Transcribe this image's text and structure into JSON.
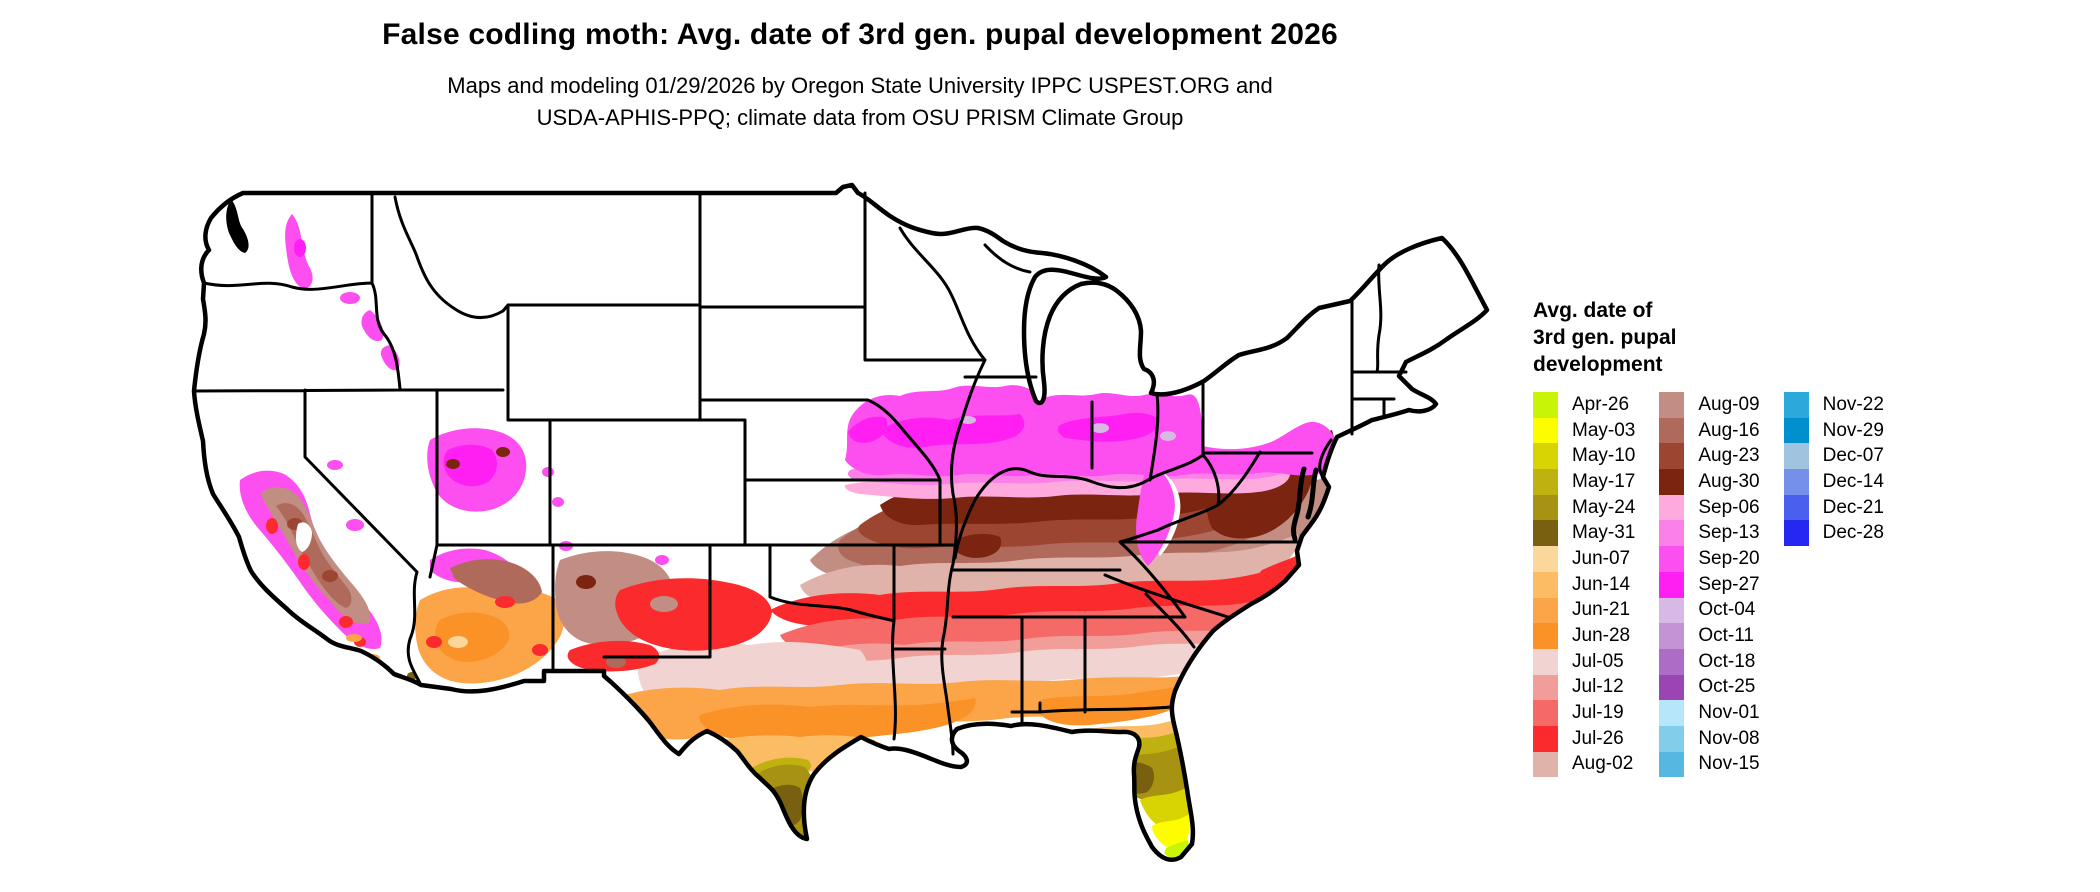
{
  "title": "False codling moth: Avg. date of 3rd gen. pupal development 2026",
  "subtitle_line1": "Maps and modeling 01/29/2026 by Oregon State University IPPC USPEST.ORG and",
  "subtitle_line2": "USDA-APHIS-PPQ; climate data from OSU PRISM Climate Group",
  "map": {
    "outline_color": "#000000",
    "background": "#ffffff",
    "water_color": "#000000"
  },
  "legend": {
    "title_line1": "Avg. date of",
    "title_line2": "3rd gen. pupal",
    "title_line3": "development",
    "columns": [
      [
        {
          "label": "Apr-26",
          "color": "#c8f507"
        },
        {
          "label": "May-03",
          "color": "#fdfd00"
        },
        {
          "label": "May-10",
          "color": "#d8d303"
        },
        {
          "label": "May-17",
          "color": "#bfb210"
        },
        {
          "label": "May-24",
          "color": "#a79212"
        },
        {
          "label": "May-31",
          "color": "#786010"
        },
        {
          "label": "Jun-07",
          "color": "#fbd79b"
        },
        {
          "label": "Jun-14",
          "color": "#fbbc64"
        },
        {
          "label": "Jun-21",
          "color": "#fba448"
        },
        {
          "label": "Jun-28",
          "color": "#fa9227"
        },
        {
          "label": "Jul-05",
          "color": "#f1d4d1"
        },
        {
          "label": "Jul-12",
          "color": "#f19e9b"
        },
        {
          "label": "Jul-19",
          "color": "#f56a67"
        },
        {
          "label": "Jul-26",
          "color": "#fb2b2d"
        },
        {
          "label": "Aug-02",
          "color": "#dfb3aa"
        }
      ],
      [
        {
          "label": "Aug-09",
          "color": "#c28d82"
        },
        {
          "label": "Aug-16",
          "color": "#b06a5b"
        },
        {
          "label": "Aug-23",
          "color": "#9c4631"
        },
        {
          "label": "Aug-30",
          "color": "#7b2410"
        },
        {
          "label": "Sep-06",
          "color": "#ffaade"
        },
        {
          "label": "Sep-13",
          "color": "#fb80e7"
        },
        {
          "label": "Sep-20",
          "color": "#fd4eef"
        },
        {
          "label": "Sep-27",
          "color": "#ff1ff3"
        },
        {
          "label": "Oct-04",
          "color": "#d8b8e5"
        },
        {
          "label": "Oct-11",
          "color": "#c493d5"
        },
        {
          "label": "Oct-18",
          "color": "#ad6cc5"
        },
        {
          "label": "Oct-25",
          "color": "#9b44b4"
        },
        {
          "label": "Nov-01",
          "color": "#b6e6fa"
        },
        {
          "label": "Nov-08",
          "color": "#82cdea"
        },
        {
          "label": "Nov-15",
          "color": "#56b8e0"
        }
      ],
      [
        {
          "label": "Nov-22",
          "color": "#2da8da"
        },
        {
          "label": "Nov-29",
          "color": "#0090ce"
        },
        {
          "label": "Dec-07",
          "color": "#a0c4e0"
        },
        {
          "label": "Dec-14",
          "color": "#7490e8"
        },
        {
          "label": "Dec-21",
          "color": "#4b5fee"
        },
        {
          "label": "Dec-28",
          "color": "#2428f1"
        }
      ]
    ]
  }
}
